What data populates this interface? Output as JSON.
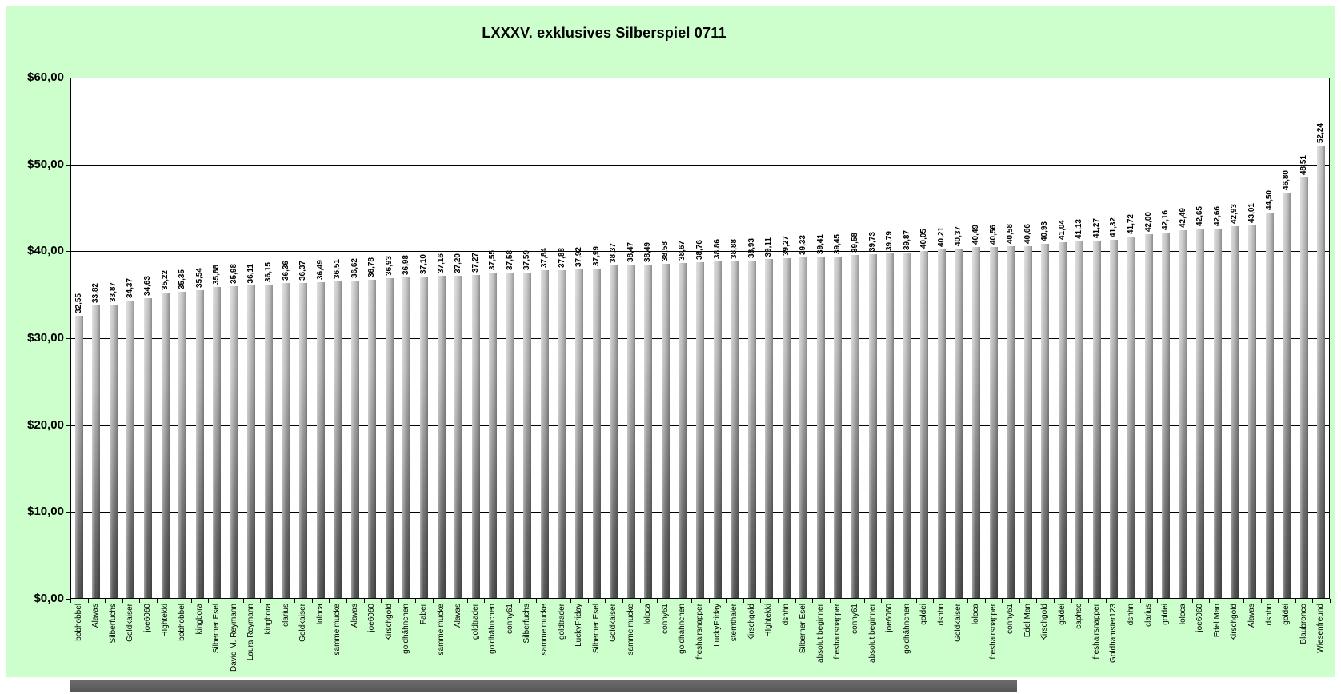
{
  "title": "LXXXV. exklusives Silberspiel 0711",
  "colors": {
    "page_background": "#ffffff",
    "chart_background": "#ccffcc",
    "plot_background": "#ffffff",
    "axis_line": "#000000",
    "gridline": "#000000",
    "bar_gradient_top": "#cbcbcb",
    "bar_gradient_bottom": "#575757",
    "text": "#000000",
    "scrollbar": "#5f5f5f"
  },
  "chart_data": {
    "type": "bar",
    "title": "LXXXV. exklusives Silberspiel 0711",
    "xlabel": "",
    "ylabel": "",
    "ylim": [
      0,
      60
    ],
    "y_tick_labels": [
      "$60,00",
      "$50,00",
      "$40,00",
      "$30,00",
      "$20,00",
      "$10,00",
      "$0,00"
    ],
    "grid": true,
    "legend": false,
    "categories": [
      "bobhobbel",
      "Alavas",
      "Silberfuchs",
      "Goldkaiser",
      "joe6060",
      "HIghtekki",
      "bobhobbel",
      "kingbora",
      "Silberner Esel",
      "David M. Reymann",
      "Laura Reymann",
      "kingbora",
      "clarius",
      "Goldkaiser",
      "loloca",
      "sammelmucke",
      "Alavas",
      "joe6060",
      "Kirschgold",
      "goldhähnchen",
      "Faber",
      "sammelmucke",
      "Alavas",
      "goldtrader",
      "goldhähnchen",
      "conny61",
      "Silberfuchs",
      "sammelmucke",
      "goldtrader",
      "LuckyFriday",
      "Silberner Esel",
      "Goldkaiser",
      "sammelmucke",
      "loloca",
      "conny61",
      "goldhähnchen",
      "freshairsnapper",
      "LuckyFriday",
      "sternthaler",
      "Kirschgold",
      "HIghtekki",
      "dshhn",
      "Silberner Esel",
      "absolut beginner",
      "freshairsnapper",
      "conny61",
      "absolut beginner",
      "joe6060",
      "goldhähnchen",
      "goldei",
      "dshhn",
      "Goldkaiser",
      "loloca",
      "freshairsnapper",
      "conny61",
      "Edel Man",
      "Kirschgold",
      "goldei",
      "caphsc",
      "freshairsnapper",
      "Goldhamster123",
      "dshhn",
      "clarius",
      "goldei",
      "loloca",
      "joe6060",
      "Edel Man",
      "Kirschgold",
      "Alavas",
      "dshhn",
      "goldei",
      "Blaubronco",
      "Wiesenfreund"
    ],
    "values": [
      32.55,
      33.82,
      33.87,
      34.37,
      34.63,
      35.22,
      35.35,
      35.54,
      35.88,
      35.98,
      36.11,
      36.15,
      36.36,
      36.37,
      36.49,
      36.51,
      36.62,
      36.78,
      36.93,
      36.98,
      37.1,
      37.16,
      37.2,
      37.27,
      37.55,
      37.58,
      37.59,
      37.84,
      37.88,
      37.92,
      37.99,
      38.37,
      38.47,
      38.49,
      38.58,
      38.67,
      38.76,
      38.86,
      38.88,
      38.93,
      39.11,
      39.27,
      39.33,
      39.41,
      39.45,
      39.58,
      39.73,
      39.79,
      39.87,
      40.05,
      40.21,
      40.37,
      40.49,
      40.56,
      40.58,
      40.66,
      40.93,
      41.04,
      41.13,
      41.27,
      41.32,
      41.72,
      42.0,
      42.16,
      42.49,
      42.65,
      42.66,
      42.93,
      43.01,
      44.5,
      46.8,
      48.51,
      52.24
    ],
    "value_labels": [
      "32,55",
      "33,82",
      "33,87",
      "34,37",
      "34,63",
      "35,22",
      "35,35",
      "35,54",
      "35,88",
      "35,98",
      "36,11",
      "36,15",
      "36,36",
      "36,37",
      "36,49",
      "36,51",
      "36,62",
      "36,78",
      "36,93",
      "36,98",
      "37,10",
      "37,16",
      "37,20",
      "37,27",
      "37,55",
      "37,58",
      "37,59",
      "37,84",
      "37,88",
      "37,92",
      "37,99",
      "38,37",
      "38,47",
      "38,49",
      "38,58",
      "38,67",
      "38,76",
      "38,86",
      "38,88",
      "38,93",
      "39,11",
      "39,27",
      "39,33",
      "39,41",
      "39,45",
      "39,58",
      "39,73",
      "39,79",
      "39,87",
      "40,05",
      "40,21",
      "40,37",
      "40,49",
      "40,56",
      "40,58",
      "40,66",
      "40,93",
      "41,04",
      "41,13",
      "41,27",
      "41,32",
      "41,72",
      "42,00",
      "42,16",
      "42,49",
      "42,65",
      "42,66",
      "42,93",
      "43,01",
      "44,50",
      "46,80",
      "48,51",
      "52,24"
    ]
  }
}
